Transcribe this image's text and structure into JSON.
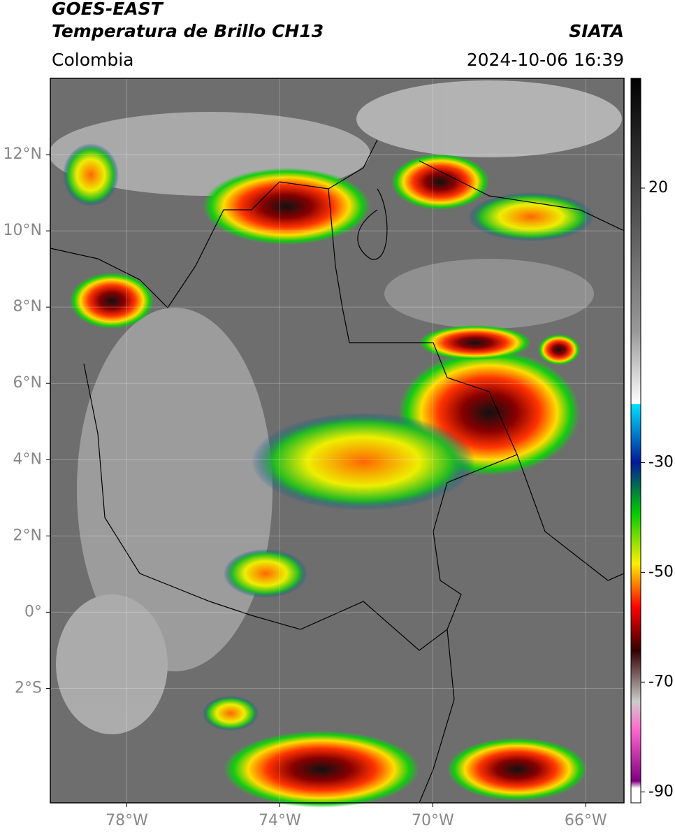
{
  "header": {
    "title": "GOES-EAST",
    "subtitle": "Temperatura de Brillo CH13",
    "region": "Colombia",
    "agency": "SIATA",
    "datetime": "2024-10-06 16:39"
  },
  "map": {
    "xlim": [
      -80,
      -65
    ],
    "ylim": [
      -5,
      14
    ],
    "xticks": [
      {
        "value": -78,
        "label": "78°W"
      },
      {
        "value": -74,
        "label": "74°W"
      },
      {
        "value": -70,
        "label": "70°W"
      },
      {
        "value": -66,
        "label": "66°W"
      }
    ],
    "yticks": [
      {
        "value": 12,
        "label": "12°N"
      },
      {
        "value": 10,
        "label": "10°N"
      },
      {
        "value": 8,
        "label": "8°N"
      },
      {
        "value": 6,
        "label": "6°N"
      },
      {
        "value": 4,
        "label": "4°N"
      },
      {
        "value": 2,
        "label": "2°N"
      },
      {
        "value": 0,
        "label": "0°"
      },
      {
        "value": -2,
        "label": "2°S"
      }
    ]
  },
  "colorbar": {
    "lim": [
      -92,
      40
    ],
    "ticks": [
      20,
      -30,
      -50,
      -70,
      -90
    ]
  }
}
